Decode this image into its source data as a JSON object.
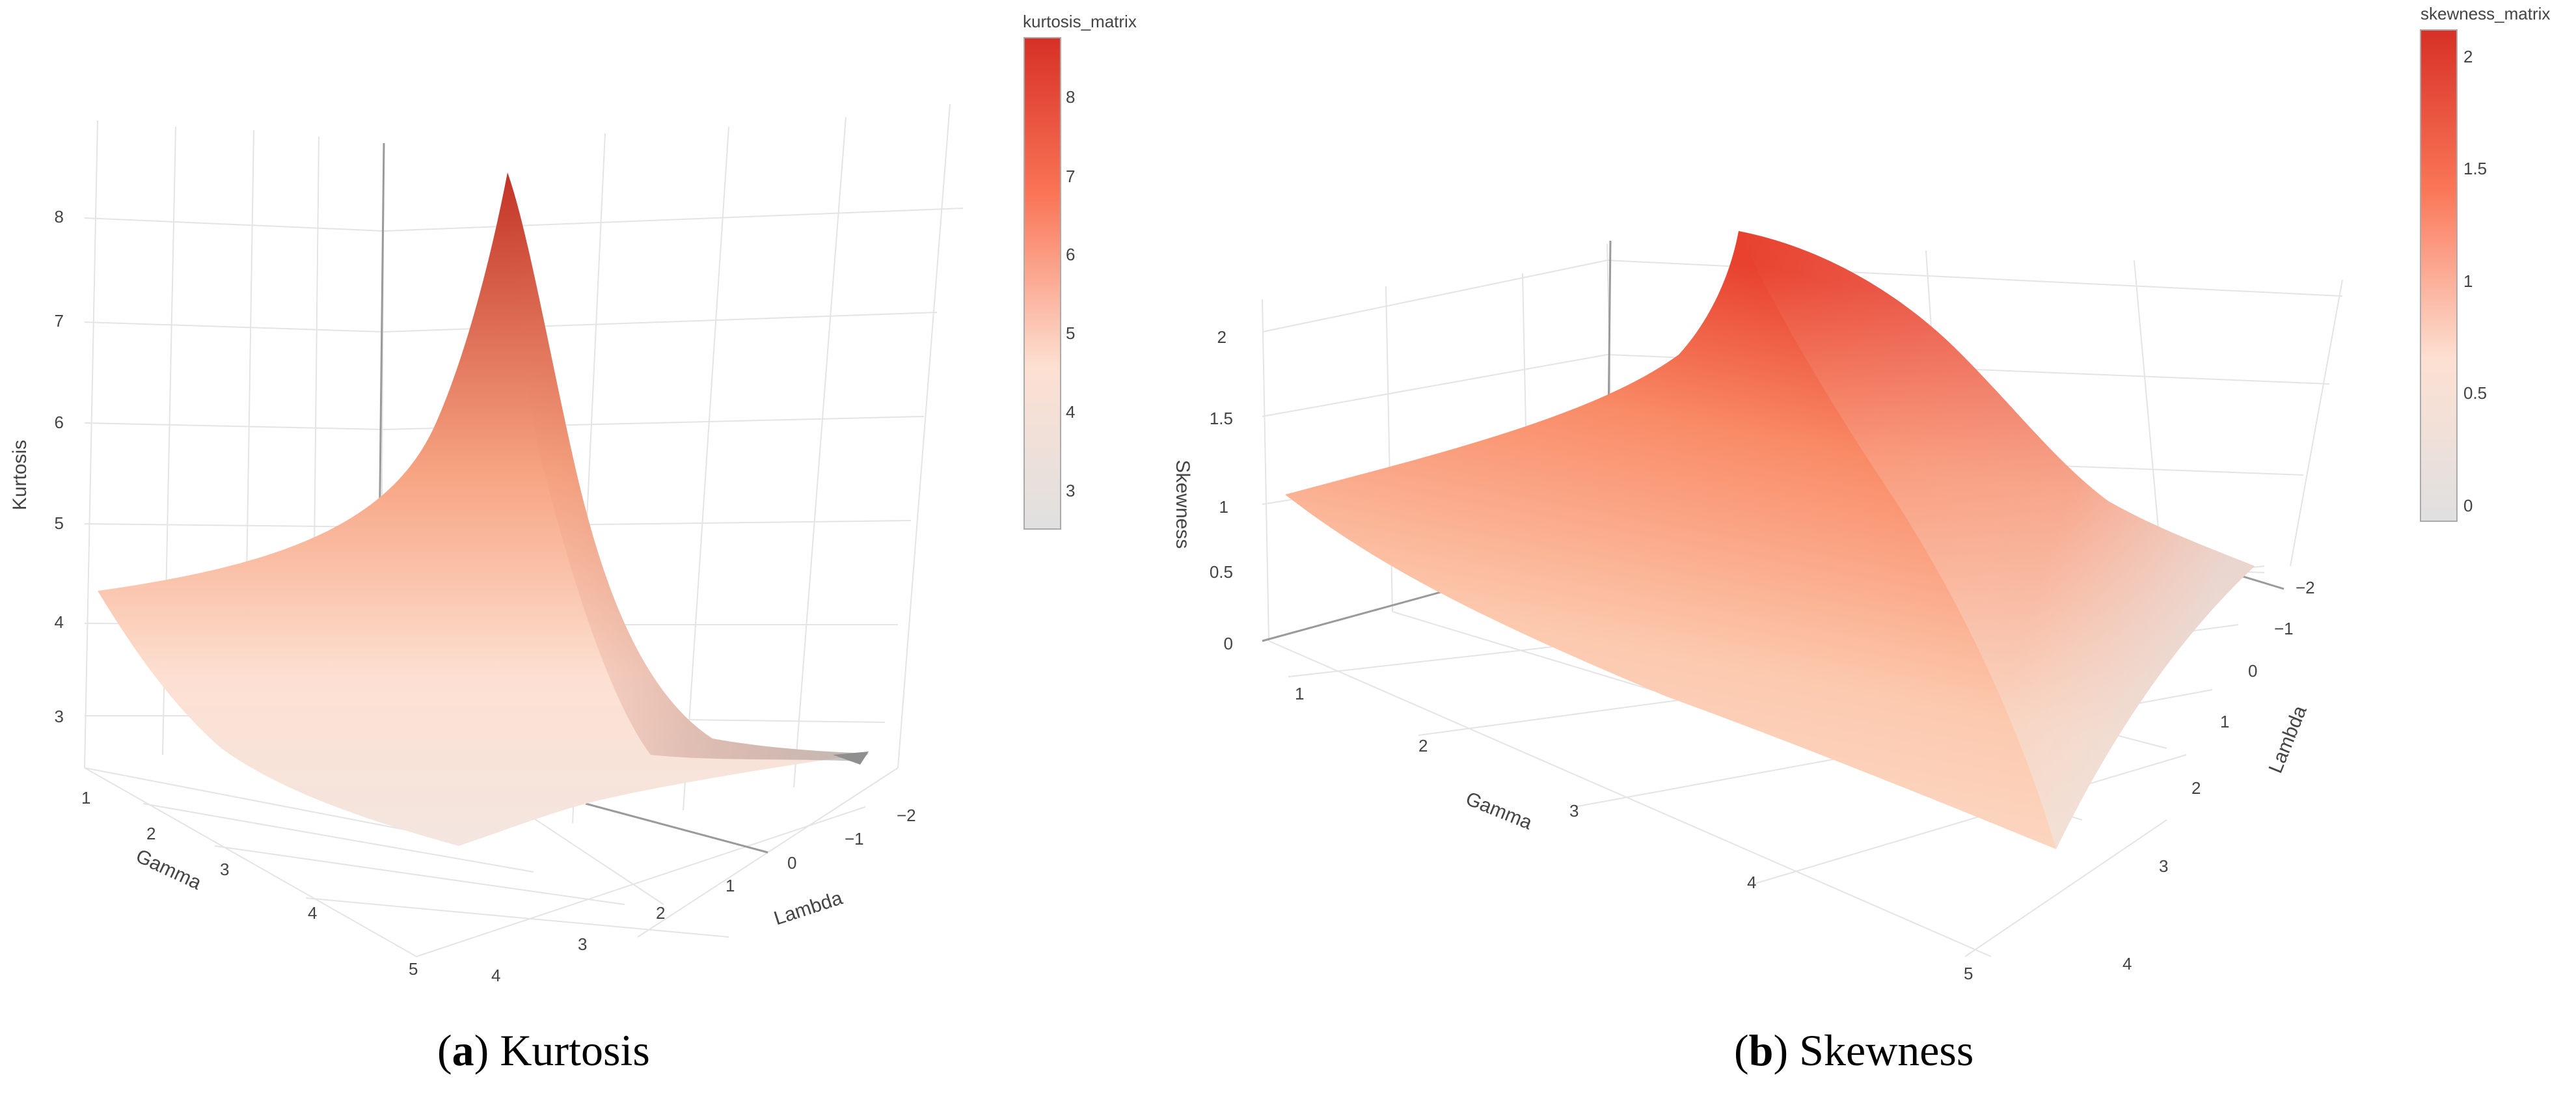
{
  "chart_data": [
    {
      "type": "surface",
      "caption_letter": "a",
      "caption_text": "Kurtosis",
      "xlabel": "Gamma",
      "ylabel": "Lambda",
      "zlabel": "Kurtosis",
      "colorbar_title": "kurtosis_matrix",
      "x_ticks": [
        "1",
        "2",
        "3",
        "4",
        "5"
      ],
      "y_ticks": [
        "−2",
        "−1",
        "0",
        "1",
        "2",
        "3",
        "4"
      ],
      "z_ticks": [
        "3",
        "4",
        "5",
        "6",
        "7",
        "8"
      ],
      "colorbar_ticks": [
        "3",
        "4",
        "5",
        "6",
        "7",
        "8"
      ],
      "zlim": [
        2.5,
        8.7
      ],
      "grid": true,
      "colorscale": [
        "#e0e0e0",
        "#fde0d2",
        "#fa7556",
        "#d73027"
      ],
      "corner_values": {
        "gamma1_lambda_min": 4.3,
        "gamma1_lambda_max": 2.8,
        "gamma_max_lambda_min": 8.5,
        "gamma_max_lambda_max": 2.7
      }
    },
    {
      "type": "surface",
      "caption_letter": "b",
      "caption_text": "Skewness",
      "xlabel": "Gamma",
      "ylabel": "Lambda",
      "zlabel": "Skewness",
      "colorbar_title": "skewness_matrix",
      "x_ticks": [
        "1",
        "2",
        "3",
        "4",
        "5"
      ],
      "y_ticks": [
        "−2",
        "−1",
        "0",
        "1",
        "2",
        "3",
        "4"
      ],
      "z_ticks": [
        "0",
        "0.5",
        "1",
        "1.5",
        "2"
      ],
      "colorbar_ticks": [
        "0",
        "0.5",
        "1",
        "1.5",
        "2"
      ],
      "zlim": [
        -0.1,
        2.1
      ],
      "grid": true,
      "colorscale": [
        "#e0e0e0",
        "#fde0d2",
        "#fa7556",
        "#d73027"
      ],
      "corner_values": {
        "gamma1_lambda_min": 0.95,
        "gamma1_lambda_max": 0.1,
        "gamma_max_lambda_min": 2.1,
        "gamma_max_lambda_max": 0.3
      }
    }
  ]
}
